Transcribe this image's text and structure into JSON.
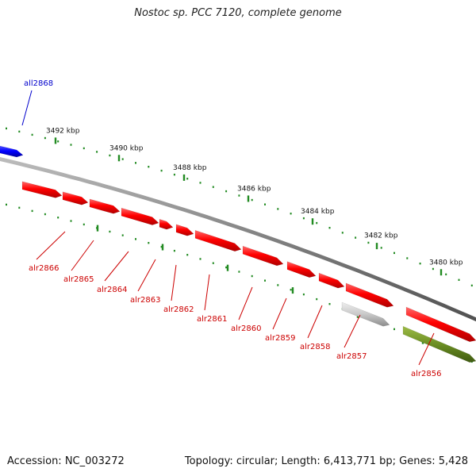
{
  "title": "Nostoc sp. PCC 7120, complete genome",
  "footer": {
    "accession": "Accession: NC_003272",
    "summary": "Topology: circular; Length: 6,413,771 bp; Genes: 5,428"
  },
  "colors": {
    "forward_gene": "#ff0000",
    "reverse_gene": "#0000ff",
    "gray_gene": "#c0c0c0",
    "olive_gene": "#6b8e23",
    "backbone": "#808080",
    "ticks": "#228b22"
  },
  "scale_labels": [
    "3492 kbp",
    "3490 kbp",
    "3488 kbp",
    "3486 kbp",
    "3484 kbp",
    "3482 kbp",
    "3480 kbp"
  ],
  "genes": [
    {
      "label": "all2868",
      "strand": "reverse",
      "color": "blue"
    },
    {
      "label": "alr2866",
      "strand": "forward",
      "color": "red"
    },
    {
      "label": "alr2865",
      "strand": "forward",
      "color": "red"
    },
    {
      "label": "alr2864",
      "strand": "forward",
      "color": "red"
    },
    {
      "label": "alr2863",
      "strand": "forward",
      "color": "red"
    },
    {
      "label": "alr2862",
      "strand": "forward",
      "color": "red"
    },
    {
      "label": "alr2861",
      "strand": "forward",
      "color": "red"
    },
    {
      "label": "alr2860",
      "strand": "forward",
      "color": "red"
    },
    {
      "label": "alr2859",
      "strand": "forward",
      "color": "red"
    },
    {
      "label": "alr2858",
      "strand": "forward",
      "color": "red"
    },
    {
      "label": "alr2857",
      "strand": "forward",
      "color": "red"
    },
    {
      "label": "alr2856",
      "strand": "forward",
      "color": "red"
    }
  ]
}
